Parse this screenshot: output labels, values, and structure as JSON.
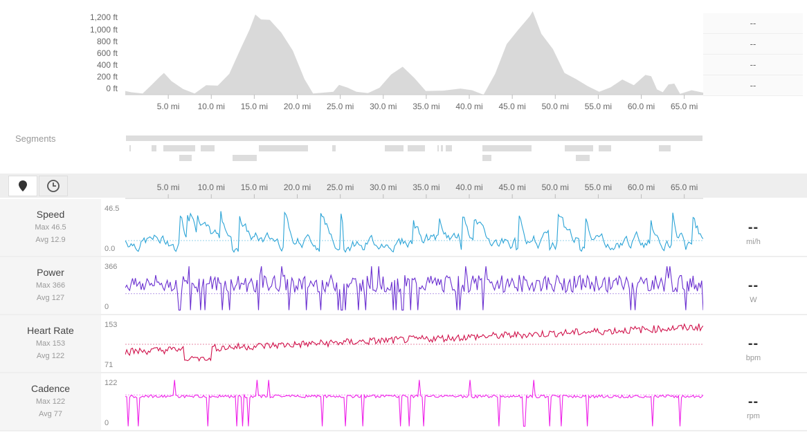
{
  "elevation": {
    "y_labels": [
      "1,200 ft",
      "1,000 ft",
      "800 ft",
      "600 ft",
      "400 ft",
      "200 ft",
      "0 ft"
    ],
    "x_labels": [
      "5.0 mi",
      "10.0 mi",
      "15.0 mi",
      "20.0 mi",
      "25.0 mi",
      "30.0 mi",
      "35.0 mi",
      "40.0 mi",
      "45.0 mi",
      "50.0 mi",
      "55.0 mi",
      "60.0 mi",
      "65.0 mi"
    ],
    "side_values": [
      "--",
      "--",
      "--",
      "--"
    ],
    "fill_color": "#d8d8d8"
  },
  "segments": {
    "label": "Segments"
  },
  "toolbar": {
    "map_icon": "map-pin-icon",
    "time_icon": "clock-icon",
    "x_labels": [
      "5.0 mi",
      "10.0 mi",
      "15.0 mi",
      "20.0 mi",
      "25.0 mi",
      "30.0 mi",
      "35.0 mi",
      "40.0 mi",
      "45.0 mi",
      "50.0 mi",
      "55.0 mi",
      "60.0 mi",
      "65.0 mi"
    ]
  },
  "metrics": [
    {
      "name": "Speed",
      "max": "Max 46.5",
      "avg": "Avg 12.9",
      "ymax": "46.5",
      "ymin": "0.0",
      "value": "--",
      "unit": "mi/h",
      "color": "#2aa3d6"
    },
    {
      "name": "Power",
      "max": "Max 366",
      "avg": "Avg 127",
      "ymax": "366",
      "ymin": "0",
      "value": "--",
      "unit": "W",
      "color": "#6a2fd0"
    },
    {
      "name": "Heart Rate",
      "max": "Max 153",
      "avg": "Avg 122",
      "ymax": "153",
      "ymin": "71",
      "value": "--",
      "unit": "bpm",
      "color": "#d0104a"
    },
    {
      "name": "Cadence",
      "max": "Max 122",
      "avg": "Avg 77",
      "ymax": "122",
      "ymin": "0",
      "value": "--",
      "unit": "rpm",
      "color": "#ee1ee8"
    }
  ]
}
